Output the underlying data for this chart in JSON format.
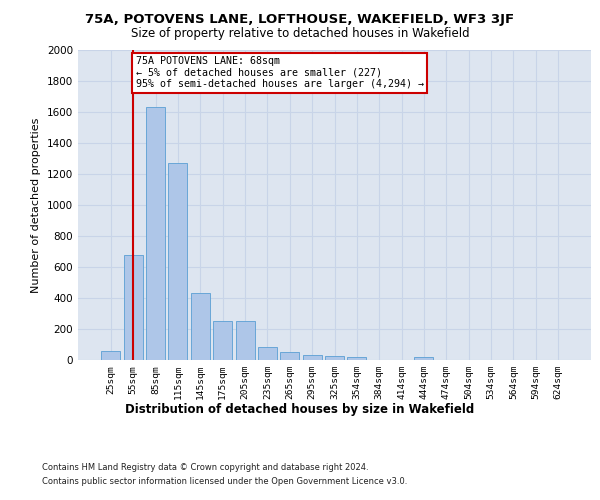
{
  "title": "75A, POTOVENS LANE, LOFTHOUSE, WAKEFIELD, WF3 3JF",
  "subtitle": "Size of property relative to detached houses in Wakefield",
  "xlabel": "Distribution of detached houses by size in Wakefield",
  "ylabel": "Number of detached properties",
  "categories": [
    "25sqm",
    "55sqm",
    "85sqm",
    "115sqm",
    "145sqm",
    "175sqm",
    "205sqm",
    "235sqm",
    "265sqm",
    "295sqm",
    "325sqm",
    "354sqm",
    "384sqm",
    "414sqm",
    "444sqm",
    "474sqm",
    "504sqm",
    "534sqm",
    "564sqm",
    "594sqm",
    "624sqm"
  ],
  "values": [
    55,
    680,
    1630,
    1270,
    430,
    250,
    250,
    85,
    50,
    35,
    25,
    20,
    0,
    0,
    20,
    0,
    0,
    0,
    0,
    0,
    0
  ],
  "bar_color": "#aec6e8",
  "bar_edge_color": "#5a9fd4",
  "vline_x": 1.0,
  "vline_color": "#cc0000",
  "annotation_text": "75A POTOVENS LANE: 68sqm\n← 5% of detached houses are smaller (227)\n95% of semi-detached houses are larger (4,294) →",
  "annotation_box_color": "#ffffff",
  "annotation_box_edge": "#cc0000",
  "ylim": [
    0,
    2000
  ],
  "yticks": [
    0,
    200,
    400,
    600,
    800,
    1000,
    1200,
    1400,
    1600,
    1800,
    2000
  ],
  "grid_color": "#c8d4e8",
  "background_color": "#dde5f0",
  "fig_background": "#ffffff",
  "footer_line1": "Contains HM Land Registry data © Crown copyright and database right 2024.",
  "footer_line2": "Contains public sector information licensed under the Open Government Licence v3.0."
}
